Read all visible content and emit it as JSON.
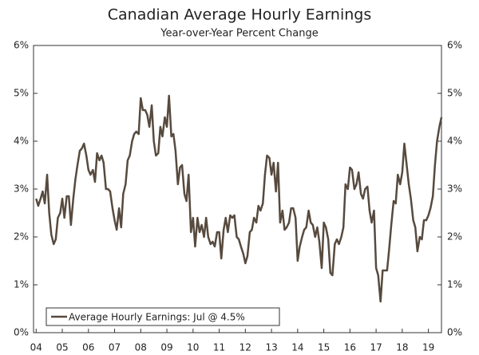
{
  "chart_data": {
    "type": "line",
    "title": "Canadian Average Hourly Earnings",
    "subtitle": "Year-over-Year Percent Change",
    "x": [
      2004,
      2004.08,
      2004.17,
      2004.25,
      2004.33,
      2004.42,
      2004.5,
      2004.58,
      2004.67,
      2004.75,
      2004.83,
      2004.92,
      2005,
      2005.08,
      2005.17,
      2005.25,
      2005.33,
      2005.42,
      2005.5,
      2005.58,
      2005.67,
      2005.75,
      2005.83,
      2005.92,
      2006,
      2006.08,
      2006.17,
      2006.25,
      2006.33,
      2006.42,
      2006.5,
      2006.58,
      2006.67,
      2006.75,
      2006.83,
      2006.92,
      2007,
      2007.08,
      2007.17,
      2007.25,
      2007.33,
      2007.42,
      2007.5,
      2007.58,
      2007.67,
      2007.75,
      2007.83,
      2007.92,
      2008,
      2008.08,
      2008.17,
      2008.25,
      2008.33,
      2008.42,
      2008.5,
      2008.58,
      2008.67,
      2008.75,
      2008.83,
      2008.92,
      2009,
      2009.08,
      2009.17,
      2009.25,
      2009.33,
      2009.42,
      2009.5,
      2009.58,
      2009.67,
      2009.75,
      2009.83,
      2009.92,
      2010,
      2010.08,
      2010.17,
      2010.25,
      2010.33,
      2010.42,
      2010.5,
      2010.58,
      2010.67,
      2010.75,
      2010.83,
      2010.92,
      2011,
      2011.08,
      2011.17,
      2011.25,
      2011.33,
      2011.42,
      2011.5,
      2011.58,
      2011.67,
      2011.75,
      2011.83,
      2011.92,
      2012,
      2012.08,
      2012.17,
      2012.25,
      2012.33,
      2012.42,
      2012.5,
      2012.58,
      2012.67,
      2012.75,
      2012.83,
      2012.92,
      2013,
      2013.08,
      2013.17,
      2013.25,
      2013.33,
      2013.42,
      2013.5,
      2013.58,
      2013.67,
      2013.75,
      2013.83,
      2013.92,
      2014,
      2014.08,
      2014.17,
      2014.25,
      2014.33,
      2014.42,
      2014.5,
      2014.58,
      2014.67,
      2014.75,
      2014.83,
      2014.92,
      2015,
      2015.08,
      2015.17,
      2015.25,
      2015.33,
      2015.42,
      2015.5,
      2015.58,
      2015.67,
      2015.75,
      2015.83,
      2015.92,
      2016,
      2016.08,
      2016.17,
      2016.25,
      2016.33,
      2016.42,
      2016.5,
      2016.58,
      2016.67,
      2016.75,
      2016.83,
      2016.92,
      2017,
      2017.08,
      2017.17,
      2017.25,
      2017.33,
      2017.42,
      2017.5,
      2017.58,
      2017.67,
      2017.75,
      2017.83,
      2017.92,
      2018,
      2018.08,
      2018.17,
      2018.25,
      2018.33,
      2018.42,
      2018.5,
      2018.58,
      2018.67,
      2018.75,
      2018.83,
      2018.92,
      2019,
      2019.08,
      2019.17,
      2019.25,
      2019.33,
      2019.42,
      2019.5
    ],
    "series": [
      {
        "name": "Average Hourly Earnings: Jul @ 4.5%",
        "color": "#574a3e",
        "values": [
          2.8,
          2.65,
          2.8,
          2.95,
          2.7,
          3.3,
          2.5,
          2.05,
          1.85,
          1.95,
          2.4,
          2.5,
          2.8,
          2.4,
          2.85,
          2.85,
          2.25,
          2.8,
          3.2,
          3.5,
          3.8,
          3.85,
          3.95,
          3.7,
          3.4,
          3.3,
          3.4,
          3.15,
          3.75,
          3.6,
          3.7,
          3.55,
          3.0,
          3.0,
          2.95,
          2.6,
          2.35,
          2.15,
          2.6,
          2.2,
          2.9,
          3.1,
          3.6,
          3.7,
          4.0,
          4.15,
          4.2,
          4.15,
          4.9,
          4.65,
          4.65,
          4.55,
          4.3,
          4.75,
          4.0,
          3.7,
          3.75,
          4.3,
          4.1,
          4.5,
          4.3,
          4.95,
          4.1,
          4.15,
          3.8,
          3.1,
          3.45,
          3.5,
          2.9,
          2.75,
          3.3,
          2.1,
          2.4,
          1.8,
          2.4,
          2.1,
          2.25,
          2.0,
          2.4,
          2.0,
          1.85,
          1.9,
          1.8,
          2.1,
          2.1,
          1.55,
          2.15,
          2.4,
          2.1,
          2.45,
          2.4,
          2.45,
          2.0,
          1.95,
          1.8,
          1.65,
          1.45,
          1.6,
          2.1,
          2.15,
          2.4,
          2.3,
          2.65,
          2.55,
          2.7,
          3.3,
          3.7,
          3.65,
          3.3,
          3.55,
          2.95,
          3.55,
          2.3,
          2.55,
          2.15,
          2.2,
          2.3,
          2.6,
          2.6,
          2.4,
          1.5,
          1.8,
          2.0,
          2.15,
          2.2,
          2.55,
          2.3,
          2.25,
          2.0,
          2.2,
          1.9,
          1.35,
          2.3,
          2.2,
          1.95,
          1.25,
          1.2,
          1.85,
          1.95,
          1.85,
          2.0,
          2.2,
          3.1,
          3.0,
          3.45,
          3.4,
          3.0,
          3.1,
          3.35,
          2.9,
          2.8,
          3.0,
          3.05,
          2.55,
          2.3,
          2.55,
          1.35,
          1.2,
          0.65,
          1.3,
          1.3,
          1.3,
          1.75,
          2.25,
          2.75,
          2.7,
          3.3,
          3.1,
          3.35,
          3.95,
          3.5,
          3.1,
          2.8,
          2.35,
          2.2,
          1.7,
          2.0,
          1.95,
          2.35,
          2.35,
          2.45,
          2.6,
          2.85,
          3.5,
          4.0,
          4.3,
          4.5
        ]
      }
    ],
    "xlim": [
      2003.9,
      2019.5
    ],
    "xticks": [
      {
        "value": 2004,
        "label": "04"
      },
      {
        "value": 2005,
        "label": "05"
      },
      {
        "value": 2006,
        "label": "06"
      },
      {
        "value": 2007,
        "label": "07"
      },
      {
        "value": 2008,
        "label": "08"
      },
      {
        "value": 2009,
        "label": "09"
      },
      {
        "value": 2010,
        "label": "10"
      },
      {
        "value": 2011,
        "label": "11"
      },
      {
        "value": 2012,
        "label": "12"
      },
      {
        "value": 2013,
        "label": "13"
      },
      {
        "value": 2014,
        "label": "14"
      },
      {
        "value": 2015,
        "label": "15"
      },
      {
        "value": 2016,
        "label": "16"
      },
      {
        "value": 2017,
        "label": "17"
      },
      {
        "value": 2018,
        "label": "18"
      },
      {
        "value": 2019,
        "label": "19"
      }
    ],
    "ylim": [
      0,
      6
    ],
    "yticks": [
      {
        "value": 0,
        "label": "0%"
      },
      {
        "value": 1,
        "label": "1%"
      },
      {
        "value": 2,
        "label": "2%"
      },
      {
        "value": 3,
        "label": "3%"
      },
      {
        "value": 4,
        "label": "4%"
      },
      {
        "value": 5,
        "label": "5%"
      },
      {
        "value": 6,
        "label": "6%"
      }
    ],
    "y2lim": [
      0,
      6
    ],
    "y2ticks": [
      {
        "value": 0,
        "label": "0%"
      },
      {
        "value": 1,
        "label": "1%"
      },
      {
        "value": 2,
        "label": "2%"
      },
      {
        "value": 3,
        "label": "3%"
      },
      {
        "value": 4,
        "label": "4%"
      },
      {
        "value": 5,
        "label": "5%"
      },
      {
        "value": 6,
        "label": "6%"
      }
    ],
    "legend": "bottom-left"
  }
}
